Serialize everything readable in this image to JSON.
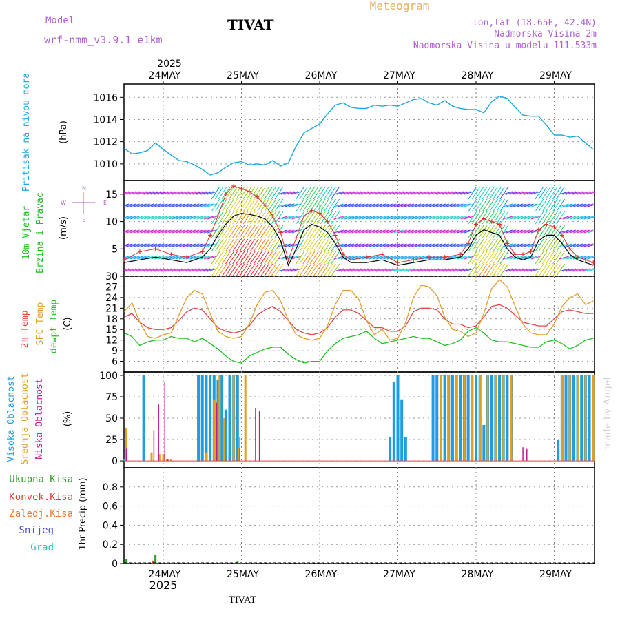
{
  "header": {
    "model_label": "Model",
    "model_name": "wrf-nmm_v3.9.1 e1km",
    "station": "TIVAT",
    "title": "Meteogram",
    "location": "lon,lat (18.65E, 42.4N)",
    "elevation": "Nadmorska Visina 2m",
    "model_elevation": "Nadmorska Visina u modelu 111.533m",
    "footer_station": "TIVAT",
    "credit": "made by Angel"
  },
  "colors": {
    "pressure": "#1ea8e0",
    "temp2m": "#e04848",
    "sfc_temp": "#e0a030",
    "dewpoint": "#20c020",
    "high_cloud": "#1e9ee0",
    "mid_cloud": "#e0a020",
    "low_cloud": "#c01890",
    "total_precip": "#2a9a20",
    "convective": "#e04040",
    "freezing": "#f07a30",
    "snow": "#5050e0",
    "hail": "#20c0c0",
    "wind_speed_line": "#000000",
    "gust": "#e03030",
    "model_text": "#b060d0",
    "title_text": "#e8b060"
  },
  "time_axis": {
    "top_labels": [
      "24MAY",
      "25MAY",
      "26MAY",
      "27MAY",
      "28MAY",
      "29MAY"
    ],
    "top_year": "2025",
    "bottom_labels": [
      "24MAY",
      "25MAY",
      "26MAY",
      "27MAY",
      "28MAY",
      "29MAY"
    ],
    "bottom_year": "2025"
  },
  "panels": {
    "pressure": {
      "label1": "Pritisak na nivou mora",
      "unit": "(hPa)"
    },
    "wind": {
      "label1": "10m Vjetar",
      "label2": "Brzina i Pravac",
      "unit": "(m/s)",
      "compass_n": "N",
      "compass_s": "S",
      "compass_w": "W",
      "compass_e": "E"
    },
    "temp": {
      "label1": "2m Temp",
      "label2": "SFC Temp",
      "label3": "dewpt Temp",
      "unit": "(C)"
    },
    "cloud": {
      "label1": "Visoka Oblacnost",
      "label2": "Srednja Oblacnost",
      "label3": "Niska Oblacnost",
      "unit": "(%)"
    },
    "precip": {
      "unit": "1hr Precip (mm)",
      "legend": [
        "Ukupna Kisa",
        "Konvek.Kisa",
        "Zaledj.Kisa",
        "Snijeg",
        "Grad"
      ]
    }
  },
  "chart_data": [
    {
      "type": "line",
      "panel": "pressure",
      "x_unit": "days since 24MAY 00UTC",
      "ylim": [
        1008.5,
        1017.2
      ],
      "yticks": [
        1010,
        1012,
        1014,
        1016
      ],
      "series": [
        {
          "name": "Pritisak na nivou mora",
          "x": [
            -0.5,
            -0.4,
            -0.3,
            -0.2,
            -0.1,
            0.0,
            0.1,
            0.2,
            0.3,
            0.4,
            0.5,
            0.6,
            0.7,
            0.8,
            0.9,
            1.0,
            1.1,
            1.2,
            1.3,
            1.4,
            1.5,
            1.6,
            1.7,
            1.8,
            1.9,
            2.0,
            2.1,
            2.2,
            2.3,
            2.4,
            2.5,
            2.6,
            2.7,
            2.8,
            2.9,
            3.0,
            3.1,
            3.2,
            3.3,
            3.4,
            3.5,
            3.6,
            3.7,
            3.8,
            3.9,
            4.0,
            4.1,
            4.2,
            4.3,
            4.4,
            4.5,
            4.6,
            4.7,
            4.8,
            4.9,
            5.0,
            5.1,
            5.2,
            5.3,
            5.4,
            5.5
          ],
          "y": [
            1011.4,
            1010.9,
            1011.0,
            1011.2,
            1011.9,
            1011.3,
            1010.8,
            1010.3,
            1010.2,
            1009.9,
            1009.5,
            1009.0,
            1009.2,
            1009.7,
            1010.1,
            1010.2,
            1009.9,
            1010.0,
            1009.9,
            1010.3,
            1009.8,
            1010.1,
            1011.6,
            1012.8,
            1013.2,
            1013.6,
            1014.5,
            1015.3,
            1015.5,
            1015.1,
            1015.0,
            1015.0,
            1015.3,
            1015.2,
            1015.3,
            1015.2,
            1015.5,
            1015.8,
            1015.9,
            1015.5,
            1015.3,
            1015.7,
            1015.2,
            1015.0,
            1014.9,
            1014.9,
            1014.6,
            1015.6,
            1016.1,
            1015.9,
            1015.1,
            1014.4,
            1014.3,
            1014.3,
            1013.5,
            1012.6,
            1012.6,
            1012.4,
            1012.5,
            1011.9,
            1011.3
          ]
        }
      ]
    },
    {
      "type": "line",
      "panel": "wind",
      "x_unit": "days since 24MAY 00UTC",
      "ylim": [
        0,
        17.5
      ],
      "yticks": [
        0,
        5,
        10,
        15
      ],
      "series": [
        {
          "name": "Brzina",
          "x": [
            -0.5,
            -0.3,
            -0.1,
            0.1,
            0.3,
            0.5,
            0.6,
            0.7,
            0.8,
            0.9,
            1.0,
            1.1,
            1.2,
            1.3,
            1.4,
            1.5,
            1.6,
            1.7,
            1.8,
            1.9,
            2.0,
            2.1,
            2.2,
            2.3,
            2.4,
            2.6,
            2.8,
            3.0,
            3.2,
            3.4,
            3.6,
            3.8,
            3.9,
            4.0,
            4.1,
            4.2,
            4.3,
            4.4,
            4.5,
            4.6,
            4.7,
            4.8,
            4.9,
            5.0,
            5.1,
            5.2,
            5.3,
            5.4,
            5.5
          ],
          "y": [
            2.5,
            3.0,
            3.5,
            3.0,
            2.5,
            3.5,
            5.0,
            7.5,
            9.5,
            11.0,
            11.5,
            11.3,
            11.0,
            10.5,
            9.0,
            6.5,
            2.0,
            5.0,
            8.5,
            9.5,
            9.0,
            8.0,
            6.0,
            3.5,
            2.5,
            2.5,
            3.0,
            2.0,
            2.5,
            3.0,
            3.0,
            3.5,
            5.0,
            7.5,
            8.5,
            8.0,
            7.5,
            5.0,
            3.5,
            3.0,
            3.5,
            6.5,
            7.5,
            7.5,
            6.0,
            4.0,
            3.0,
            2.5,
            2.0
          ]
        },
        {
          "name": "Udari",
          "x": [
            -0.5,
            -0.3,
            -0.1,
            0.1,
            0.3,
            0.5,
            0.6,
            0.7,
            0.8,
            0.9,
            1.0,
            1.1,
            1.2,
            1.3,
            1.4,
            1.5,
            1.6,
            1.7,
            1.8,
            1.9,
            2.0,
            2.1,
            2.2,
            2.3,
            2.4,
            2.6,
            2.8,
            3.0,
            3.2,
            3.4,
            3.6,
            3.8,
            3.9,
            4.0,
            4.1,
            4.2,
            4.3,
            4.4,
            4.5,
            4.6,
            4.7,
            4.8,
            4.9,
            5.0,
            5.1,
            5.2,
            5.3,
            5.4,
            5.5
          ],
          "y": [
            3.0,
            4.5,
            5.0,
            4.0,
            3.5,
            4.5,
            7.5,
            11.0,
            15.0,
            16.5,
            16.0,
            15.5,
            14.5,
            13.0,
            11.0,
            8.0,
            3.0,
            7.0,
            11.0,
            12.0,
            11.5,
            10.0,
            7.5,
            4.0,
            3.0,
            3.5,
            4.0,
            2.5,
            3.0,
            3.5,
            3.5,
            4.0,
            6.0,
            9.5,
            10.5,
            10.0,
            9.5,
            6.0,
            4.0,
            4.0,
            4.5,
            8.5,
            9.5,
            9.0,
            7.5,
            5.0,
            3.5,
            3.0,
            2.5
          ]
        }
      ]
    },
    {
      "type": "line",
      "panel": "temperature",
      "x_unit": "days since 24MAY 00UTC",
      "ylim": [
        3,
        30
      ],
      "yticks": [
        6,
        9,
        12,
        15,
        18,
        21,
        24,
        27,
        30
      ],
      "series": [
        {
          "name": "2m Temp",
          "x": [
            -0.5,
            -0.4,
            -0.3,
            -0.2,
            -0.1,
            0.0,
            0.1,
            0.2,
            0.3,
            0.4,
            0.5,
            0.6,
            0.7,
            0.8,
            0.9,
            1.0,
            1.1,
            1.2,
            1.3,
            1.4,
            1.5,
            1.6,
            1.7,
            1.8,
            1.9,
            2.0,
            2.1,
            2.2,
            2.3,
            2.4,
            2.5,
            2.6,
            2.7,
            2.8,
            2.9,
            3.0,
            3.1,
            3.2,
            3.3,
            3.4,
            3.5,
            3.6,
            3.7,
            3.8,
            3.9,
            4.0,
            4.1,
            4.2,
            4.3,
            4.4,
            4.5,
            4.6,
            4.7,
            4.8,
            4.9,
            5.0,
            5.1,
            5.2,
            5.3,
            5.4,
            5.5
          ],
          "y": [
            18.5,
            19.5,
            17.0,
            15.5,
            15.0,
            15.0,
            15.5,
            17.5,
            20.0,
            21.0,
            20.5,
            18.0,
            15.5,
            14.5,
            14.0,
            14.5,
            16.0,
            19.0,
            20.5,
            21.5,
            20.0,
            17.5,
            15.0,
            14.0,
            13.5,
            14.0,
            15.5,
            18.5,
            20.5,
            20.5,
            19.5,
            17.5,
            15.5,
            15.5,
            14.5,
            14.5,
            16.0,
            20.0,
            21.0,
            21.0,
            20.5,
            18.0,
            16.5,
            16.5,
            15.5,
            16.0,
            18.5,
            21.5,
            22.0,
            21.0,
            19.0,
            17.0,
            16.5,
            16.0,
            16.0,
            18.0,
            20.0,
            20.5,
            20.0,
            19.5,
            19.5
          ]
        },
        {
          "name": "SFC Temp",
          "x": [
            -0.5,
            -0.4,
            -0.3,
            -0.2,
            -0.1,
            0.0,
            0.1,
            0.2,
            0.3,
            0.4,
            0.5,
            0.6,
            0.7,
            0.8,
            0.9,
            1.0,
            1.1,
            1.2,
            1.3,
            1.4,
            1.5,
            1.6,
            1.7,
            1.8,
            1.9,
            2.0,
            2.1,
            2.2,
            2.3,
            2.4,
            2.5,
            2.6,
            2.7,
            2.8,
            2.9,
            3.0,
            3.1,
            3.2,
            3.3,
            3.4,
            3.5,
            3.6,
            3.7,
            3.8,
            3.9,
            4.0,
            4.1,
            4.2,
            4.3,
            4.4,
            4.5,
            4.6,
            4.7,
            4.8,
            4.9,
            5.0,
            5.1,
            5.2,
            5.3,
            5.4,
            5.5
          ],
          "y": [
            20.0,
            22.5,
            17.0,
            13.0,
            12.5,
            13.5,
            14.0,
            19.0,
            24.0,
            26.0,
            25.0,
            19.5,
            14.5,
            13.0,
            12.5,
            13.0,
            16.5,
            22.0,
            25.5,
            26.0,
            23.0,
            17.5,
            13.5,
            12.5,
            12.0,
            12.5,
            16.0,
            22.0,
            26.0,
            26.0,
            23.5,
            17.5,
            13.5,
            15.0,
            12.0,
            12.5,
            17.0,
            24.0,
            27.5,
            27.0,
            24.5,
            18.5,
            15.0,
            14.5,
            13.0,
            14.0,
            19.5,
            26.5,
            29.0,
            27.0,
            21.5,
            16.5,
            14.0,
            13.5,
            13.5,
            16.5,
            21.5,
            24.0,
            25.0,
            22.0,
            23.0
          ]
        },
        {
          "name": "dewpt Temp",
          "x": [
            -0.5,
            -0.4,
            -0.3,
            -0.2,
            -0.1,
            0.0,
            0.1,
            0.2,
            0.3,
            0.4,
            0.5,
            0.6,
            0.7,
            0.8,
            0.9,
            1.0,
            1.1,
            1.2,
            1.3,
            1.4,
            1.5,
            1.6,
            1.7,
            1.8,
            1.9,
            2.0,
            2.1,
            2.2,
            2.3,
            2.4,
            2.5,
            2.6,
            2.7,
            2.8,
            2.9,
            3.0,
            3.1,
            3.2,
            3.3,
            3.4,
            3.5,
            3.6,
            3.7,
            3.8,
            3.9,
            4.0,
            4.1,
            4.2,
            4.3,
            4.4,
            4.5,
            4.6,
            4.7,
            4.8,
            4.9,
            5.0,
            5.1,
            5.2,
            5.3,
            5.4,
            5.5
          ],
          "y": [
            14.0,
            13.0,
            10.5,
            11.5,
            12.0,
            12.0,
            13.0,
            12.5,
            12.5,
            11.5,
            12.5,
            11.0,
            9.5,
            7.5,
            6.0,
            5.5,
            7.5,
            8.5,
            9.5,
            10.0,
            10.0,
            8.0,
            6.5,
            5.5,
            6.0,
            6.0,
            9.0,
            11.0,
            12.5,
            13.0,
            13.5,
            14.5,
            12.5,
            11.0,
            11.5,
            12.0,
            12.5,
            13.0,
            12.5,
            12.5,
            11.5,
            10.5,
            11.0,
            12.0,
            14.5,
            15.5,
            14.0,
            12.0,
            11.5,
            11.5,
            11.0,
            10.5,
            10.0,
            10.0,
            11.5,
            12.0,
            11.0,
            9.5,
            10.5,
            12.0,
            12.5
          ]
        }
      ]
    },
    {
      "type": "bar",
      "panel": "cloud",
      "x_unit": "days since 24MAY 00UTC",
      "ylim": [
        0,
        100
      ],
      "yticks": [
        0,
        25,
        50,
        75,
        100
      ],
      "series": [
        {
          "name": "Visoka Oblacnost",
          "x": [
            -0.5,
            -0.25,
            0.45,
            0.5,
            0.55,
            0.6,
            0.65,
            0.7,
            0.75,
            0.8,
            0.85,
            0.9,
            0.95,
            2.9,
            2.95,
            3.0,
            3.05,
            3.1,
            3.45,
            3.5,
            3.55,
            3.6,
            3.65,
            3.7,
            3.75,
            3.8,
            3.85,
            3.9,
            3.95,
            4.0,
            4.05,
            4.1,
            4.15,
            4.2,
            4.25,
            4.3,
            4.35,
            4.4,
            4.45,
            5.05,
            5.1,
            5.15,
            5.2,
            5.25,
            5.3,
            5.35,
            5.4,
            5.45,
            5.5
          ],
          "y": [
            2,
            100,
            100,
            100,
            100,
            100,
            100,
            95,
            100,
            60,
            100,
            100,
            100,
            28,
            92,
            100,
            72,
            28,
            100,
            100,
            100,
            100,
            100,
            100,
            100,
            100,
            100,
            100,
            100,
            100,
            100,
            42,
            100,
            100,
            100,
            100,
            100,
            100,
            100,
            25,
            100,
            100,
            100,
            100,
            100,
            100,
            100,
            100,
            100
          ]
        },
        {
          "name": "Srednja Oblacnost",
          "x": [
            -0.48,
            -0.15,
            -0.05,
            0.0,
            0.05,
            0.1,
            0.45,
            0.55,
            0.65,
            0.72,
            0.78,
            0.9,
            0.97,
            1.05,
            3.55,
            3.65,
            3.75,
            3.85,
            3.95,
            4.05,
            4.15,
            4.25,
            4.35,
            4.45,
            5.1,
            5.2,
            5.3,
            5.4,
            5.5
          ],
          "y": [
            38,
            10,
            8,
            8,
            2,
            2,
            0,
            10,
            72,
            100,
            50,
            100,
            15,
            100,
            100,
            100,
            100,
            100,
            100,
            100,
            100,
            100,
            100,
            100,
            100,
            100,
            100,
            100,
            100
          ]
        },
        {
          "name": "Niska Oblacnost",
          "x": [
            -0.47,
            -0.12,
            -0.06,
            0.02,
            0.06,
            0.68,
            0.98,
            1.18,
            1.23,
            3.5,
            4.6,
            4.65
          ],
          "y": [
            14,
            36,
            66,
            92,
            2,
            68,
            28,
            62,
            58,
            2,
            16,
            14
          ]
        }
      ]
    },
    {
      "type": "bar",
      "panel": "precipitation",
      "x_unit": "days since 24MAY 00UTC",
      "ylim": [
        0,
        1.0
      ],
      "yticks": [
        0,
        0.2,
        0.4,
        0.6,
        0.8
      ],
      "series": [
        {
          "name": "Ukupna Kisa",
          "x": [
            -0.47,
            -0.13,
            -0.1,
            0.95
          ],
          "y": [
            0.05,
            0.03,
            0.09,
            0.02
          ]
        },
        {
          "name": "Konvek.Kisa",
          "x": [
            -0.13
          ],
          "y": [
            0.02
          ]
        }
      ]
    }
  ]
}
